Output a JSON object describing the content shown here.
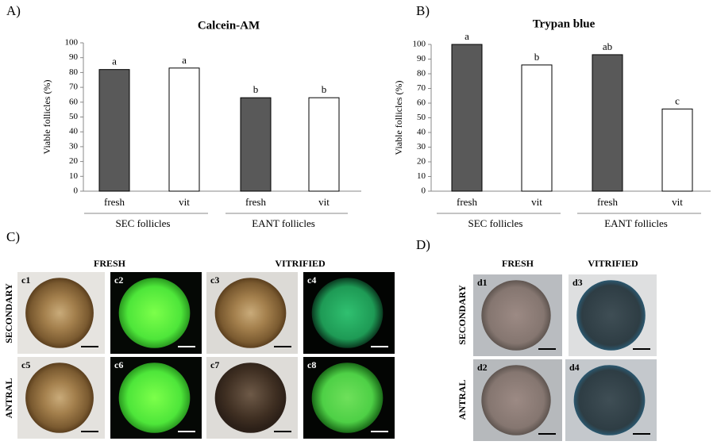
{
  "chart_data": [
    {
      "type": "bar",
      "label": "A)",
      "title": "Calcein-AM",
      "y_label": "Viable follicles (%)",
      "categories": [
        "fresh",
        "vit",
        "fresh",
        "vit"
      ],
      "groups": [
        "SEC follicles",
        "EANT follicles"
      ],
      "values": [
        82,
        83,
        63,
        63
      ],
      "annotations": [
        "a",
        "a",
        "b",
        "b"
      ],
      "colors": [
        "#595959",
        "#ffffff",
        "#595959",
        "#ffffff"
      ],
      "edge_color": "#000000",
      "ylim": [
        0,
        100
      ],
      "yticks": [
        0,
        10,
        20,
        30,
        40,
        50,
        60,
        70,
        80,
        90,
        100
      ]
    },
    {
      "type": "bar",
      "label": "B)",
      "title": "Trypan blue",
      "y_label": "Viable follicles (%)",
      "categories": [
        "fresh",
        "vit",
        "fresh",
        "vit"
      ],
      "groups": [
        "SEC follicles",
        "EANT follicles"
      ],
      "values": [
        100,
        86,
        93,
        56
      ],
      "annotations": [
        "a",
        "b",
        "ab",
        "c"
      ],
      "colors": [
        "#595959",
        "#ffffff",
        "#595959",
        "#ffffff"
      ],
      "edge_color": "#000000",
      "ylim": [
        0,
        100
      ],
      "yticks": [
        0,
        10,
        20,
        30,
        40,
        50,
        60,
        70,
        80,
        90,
        100
      ]
    }
  ],
  "panels": {
    "C": {
      "label": "C)",
      "columns": [
        "FRESH",
        "VITRIFIED"
      ],
      "rows": [
        "SECONDARY",
        "ANTRAL"
      ],
      "images": [
        "c1",
        "c2",
        "c3",
        "c4",
        "c5",
        "c6",
        "c7",
        "c8"
      ]
    },
    "D": {
      "label": "D)",
      "columns": [
        "FRESH",
        "VITRIFIED"
      ],
      "rows": [
        "SECONDARY",
        "ANTRAL"
      ],
      "images": [
        "d1",
        "d3",
        "d2",
        "d4"
      ]
    }
  }
}
